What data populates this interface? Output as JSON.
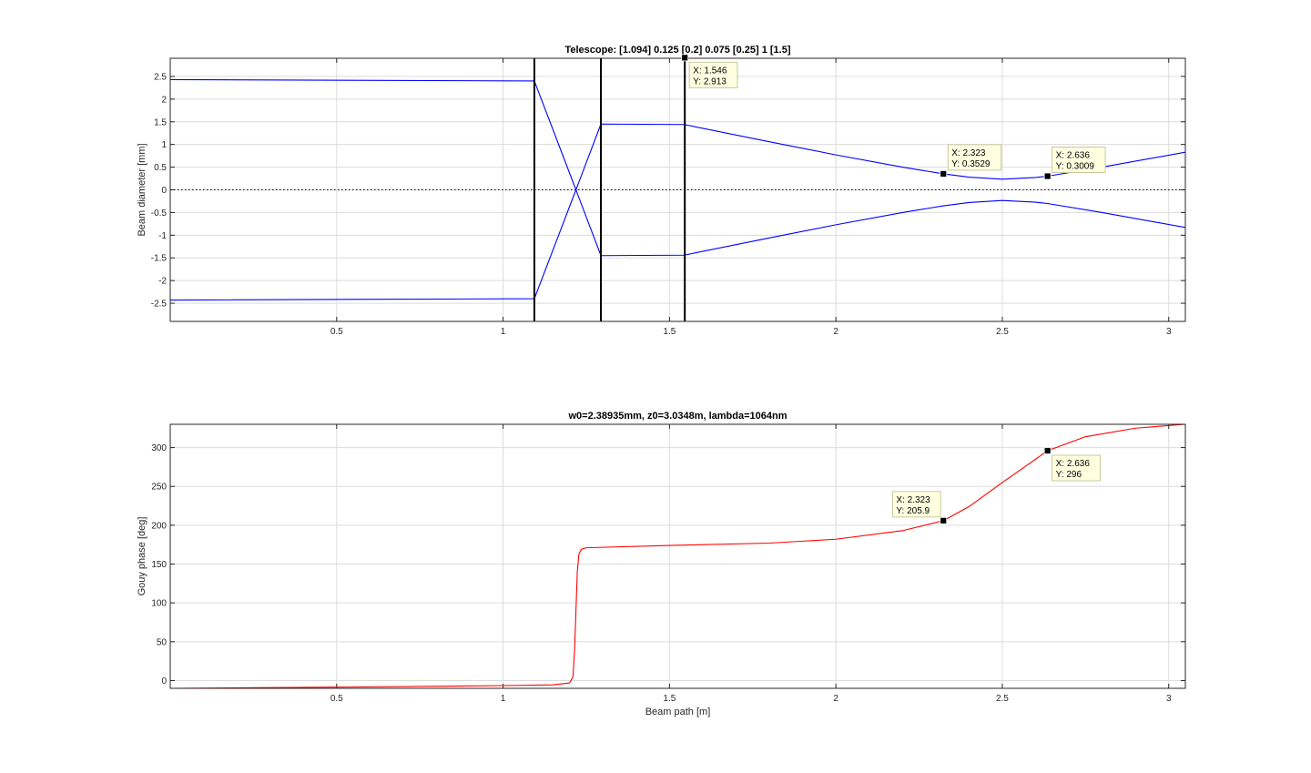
{
  "chart_data": [
    {
      "type": "line",
      "title": "Telescope: [1.094] 0.125 [0.2] 0.075 [0.25] 1 [1.5]",
      "xlabel": "",
      "ylabel": "Beam diameter [mm]",
      "xlim": [
        0,
        3.05
      ],
      "ylim": [
        -2.9,
        2.9
      ],
      "grid": true,
      "xticks": [
        0.5,
        1,
        1.5,
        2,
        2.5,
        3
      ],
      "yticks": [
        -2.5,
        -2,
        -1.5,
        -1,
        -0.5,
        0,
        0.5,
        1,
        1.5,
        2,
        2.5
      ],
      "series": [
        {
          "color": "#0000ff",
          "x": [
            0,
            1.094,
            1.219,
            1.294,
            1.544,
            1.8,
            2.0,
            2.2,
            2.323,
            2.4,
            2.5,
            2.6,
            2.636,
            2.8,
            3.05
          ],
          "values": [
            2.43,
            2.4,
            0.0,
            1.45,
            1.44,
            1.06,
            0.77,
            0.5,
            0.3529,
            0.28,
            0.235,
            0.272,
            0.3009,
            0.5,
            0.83
          ]
        },
        {
          "color": "#0000ff",
          "x": [
            0,
            1.094,
            1.219,
            1.294,
            1.544,
            1.8,
            2.0,
            2.2,
            2.323,
            2.4,
            2.5,
            2.6,
            2.636,
            2.8,
            3.05
          ],
          "values": [
            -2.43,
            -2.4,
            0.0,
            -1.45,
            -1.44,
            -1.06,
            -0.77,
            -0.5,
            -0.3529,
            -0.28,
            -0.235,
            -0.272,
            -0.3009,
            -0.5,
            -0.83
          ]
        }
      ],
      "reference_line": {
        "y": 0,
        "style": "dotted",
        "color": "#000000"
      },
      "vertical_lines": [
        1.094,
        1.294,
        1.546
      ],
      "datatips": [
        {
          "x": 1.546,
          "y": 2.913,
          "x_text": "X: 1.546",
          "y_text": "Y: 2.913",
          "side": "below-right"
        },
        {
          "x": 2.323,
          "y": 0.3529,
          "x_text": "X: 2.323",
          "y_text": "Y: 0.3529",
          "side": "above-right"
        },
        {
          "x": 2.636,
          "y": 0.3009,
          "x_text": "X: 2.636",
          "y_text": "Y: 0.3009",
          "side": "above-right"
        }
      ]
    },
    {
      "type": "line",
      "title": "w0=2.38935mm, z0=3.0348m, lambda=1064nm",
      "xlabel": "Beam path [m]",
      "ylabel": "Gouy phase [deg]",
      "xlim": [
        0,
        3.05
      ],
      "ylim": [
        -10,
        330
      ],
      "grid": true,
      "xticks": [
        0.5,
        1,
        1.5,
        2,
        2.5,
        3
      ],
      "yticks": [
        0,
        50,
        100,
        150,
        200,
        250,
        300
      ],
      "series": [
        {
          "color": "#ff0000",
          "x": [
            0,
            0.5,
            1.0,
            1.15,
            1.2,
            1.21,
            1.215,
            1.219,
            1.223,
            1.228,
            1.235,
            1.25,
            1.5,
            1.8,
            2.0,
            2.2,
            2.323,
            2.4,
            2.5,
            2.6,
            2.636,
            2.75,
            2.9,
            3.05
          ],
          "values": [
            -10,
            -8.5,
            -6.5,
            -5.5,
            -3,
            5,
            40,
            90,
            140,
            163,
            169,
            171,
            174,
            177,
            182,
            193,
            205.9,
            224,
            255,
            285,
            296,
            314,
            325,
            330
          ]
        }
      ],
      "datatips": [
        {
          "x": 2.323,
          "y": 205.9,
          "x_text": "X: 2.323",
          "y_text": "Y: 205.9",
          "side": "above-left"
        },
        {
          "x": 2.636,
          "y": 296,
          "x_text": "X: 2.636",
          "y_text": "Y: 296",
          "side": "below-right"
        }
      ]
    }
  ]
}
